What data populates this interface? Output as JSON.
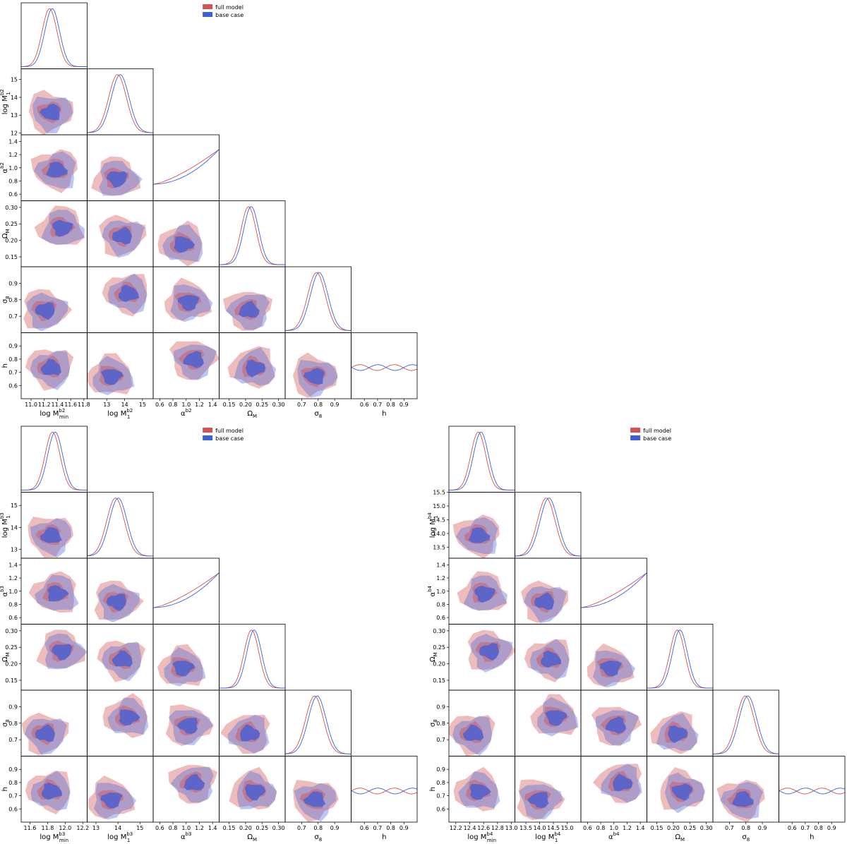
{
  "chart_data": [
    {
      "type": "corner",
      "id": "b2",
      "legend": [
        {
          "label": "full model",
          "color": "#d05252"
        },
        {
          "label": "base case",
          "color": "#3d5fd9"
        }
      ],
      "params": [
        {
          "key": "logMmin",
          "label": "log M_min^b2",
          "range": [
            10.85,
            11.85
          ],
          "ticks": [
            "11.0",
            "11.2",
            "11.4",
            "11.6",
            "11.8"
          ],
          "ytick_labels": []
        },
        {
          "key": "logM1",
          "label": "log M_1^b2",
          "range": [
            11.9,
            15.6
          ],
          "ticks": [
            "13",
            "14",
            "15"
          ],
          "ytick_labels": [
            "12",
            "13",
            "14",
            "15"
          ]
        },
        {
          "key": "alpha",
          "label": "α^b2",
          "range": [
            0.5,
            1.5
          ],
          "ticks": [
            "0.6",
            "0.8",
            "1.0",
            "1.2",
            "1.4"
          ],
          "ytick_labels": [
            "0.6",
            "0.8",
            "1.0",
            "1.2",
            "1.4"
          ]
        },
        {
          "key": "OmegaM",
          "label": "Ω_M",
          "range": [
            0.12,
            0.32
          ],
          "ticks": [
            "0.15",
            "0.20",
            "0.25",
            "0.30"
          ],
          "ytick_labels": [
            "0.15",
            "0.20",
            "0.25",
            "0.30"
          ]
        },
        {
          "key": "sigma8",
          "label": "σ_8",
          "range": [
            0.6,
            1.0
          ],
          "ticks": [
            "0.7",
            "0.8",
            "0.9"
          ],
          "ytick_labels": [
            "0.7",
            "0.8",
            "0.9"
          ]
        },
        {
          "key": "h",
          "label": "h",
          "range": [
            0.5,
            1.0
          ],
          "ticks": [
            "0.6",
            "0.7",
            "0.8",
            "0.9"
          ],
          "ytick_labels": [
            "0.6",
            "0.7",
            "0.8",
            "0.9"
          ]
        }
      ]
    },
    {
      "type": "corner",
      "id": "b3",
      "legend": [
        {
          "label": "full model",
          "color": "#d05252"
        },
        {
          "label": "base case",
          "color": "#3d5fd9"
        }
      ],
      "params": [
        {
          "key": "logMmin",
          "label": "log M_min^b3",
          "range": [
            11.5,
            12.25
          ],
          "ticks": [
            "11.6",
            "11.8",
            "12.0",
            "12.2"
          ],
          "ytick_labels": []
        },
        {
          "key": "logM1",
          "label": "log M_1^b3",
          "range": [
            12.6,
            15.6
          ],
          "ticks": [
            "13",
            "14",
            "15"
          ],
          "ytick_labels": [
            "13",
            "14",
            "15"
          ]
        },
        {
          "key": "alpha",
          "label": "α^b3",
          "range": [
            0.5,
            1.5
          ],
          "ticks": [
            "0.6",
            "0.8",
            "1.0",
            "1.2",
            "1.4"
          ],
          "ytick_labels": [
            "0.6",
            "0.8",
            "1.0",
            "1.2",
            "1.4"
          ]
        },
        {
          "key": "OmegaM",
          "label": "Ω_M",
          "range": [
            0.12,
            0.32
          ],
          "ticks": [
            "0.15",
            "0.20",
            "0.25",
            "0.30"
          ],
          "ytick_labels": [
            "0.15",
            "0.20",
            "0.25",
            "0.30"
          ]
        },
        {
          "key": "sigma8",
          "label": "σ_8",
          "range": [
            0.6,
            1.0
          ],
          "ticks": [
            "0.7",
            "0.8",
            "0.9"
          ],
          "ytick_labels": [
            "0.7",
            "0.8",
            "0.9"
          ]
        },
        {
          "key": "h",
          "label": "h",
          "range": [
            0.5,
            1.0
          ],
          "ticks": [
            "0.6",
            "0.7",
            "0.8",
            "0.9"
          ],
          "ytick_labels": [
            "0.6",
            "0.7",
            "0.8",
            "0.9"
          ]
        }
      ]
    },
    {
      "type": "corner",
      "id": "b4",
      "legend": [
        {
          "label": "full model",
          "color": "#d05252"
        },
        {
          "label": "base case",
          "color": "#3d5fd9"
        }
      ],
      "params": [
        {
          "key": "logMmin",
          "label": "log M_min^b4",
          "range": [
            12.1,
            13.05
          ],
          "ticks": [
            "12.2",
            "12.4",
            "12.6",
            "12.8",
            "13.0"
          ],
          "ytick_labels": []
        },
        {
          "key": "logM1",
          "label": "log M_1^b4",
          "range": [
            13.1,
            15.5
          ],
          "ticks": [
            "13.5",
            "14.0",
            "14.5",
            "15.0"
          ],
          "ytick_labels": [
            "13.5",
            "14.0",
            "14.5",
            "15.0",
            "15.5"
          ]
        },
        {
          "key": "alpha",
          "label": "α^b4",
          "range": [
            0.5,
            1.5
          ],
          "ticks": [
            "0.6",
            "0.8",
            "1.0",
            "1.2",
            "1.4"
          ],
          "ytick_labels": [
            "0.6",
            "0.8",
            "1.0",
            "1.2",
            "1.4"
          ]
        },
        {
          "key": "OmegaM",
          "label": "Ω_M",
          "range": [
            0.12,
            0.32
          ],
          "ticks": [
            "0.15",
            "0.20",
            "0.25",
            "0.30"
          ],
          "ytick_labels": [
            "0.15",
            "0.20",
            "0.25",
            "0.30"
          ]
        },
        {
          "key": "sigma8",
          "label": "σ_8",
          "range": [
            0.6,
            1.0
          ],
          "ticks": [
            "0.7",
            "0.8",
            "0.9"
          ],
          "ytick_labels": [
            "0.7",
            "0.8",
            "0.9"
          ]
        },
        {
          "key": "h",
          "label": "h",
          "range": [
            0.5,
            1.0
          ],
          "ticks": [
            "0.6",
            "0.7",
            "0.8",
            "0.9"
          ],
          "ytick_labels": [
            "0.6",
            "0.7",
            "0.8",
            "0.9"
          ]
        }
      ]
    }
  ]
}
